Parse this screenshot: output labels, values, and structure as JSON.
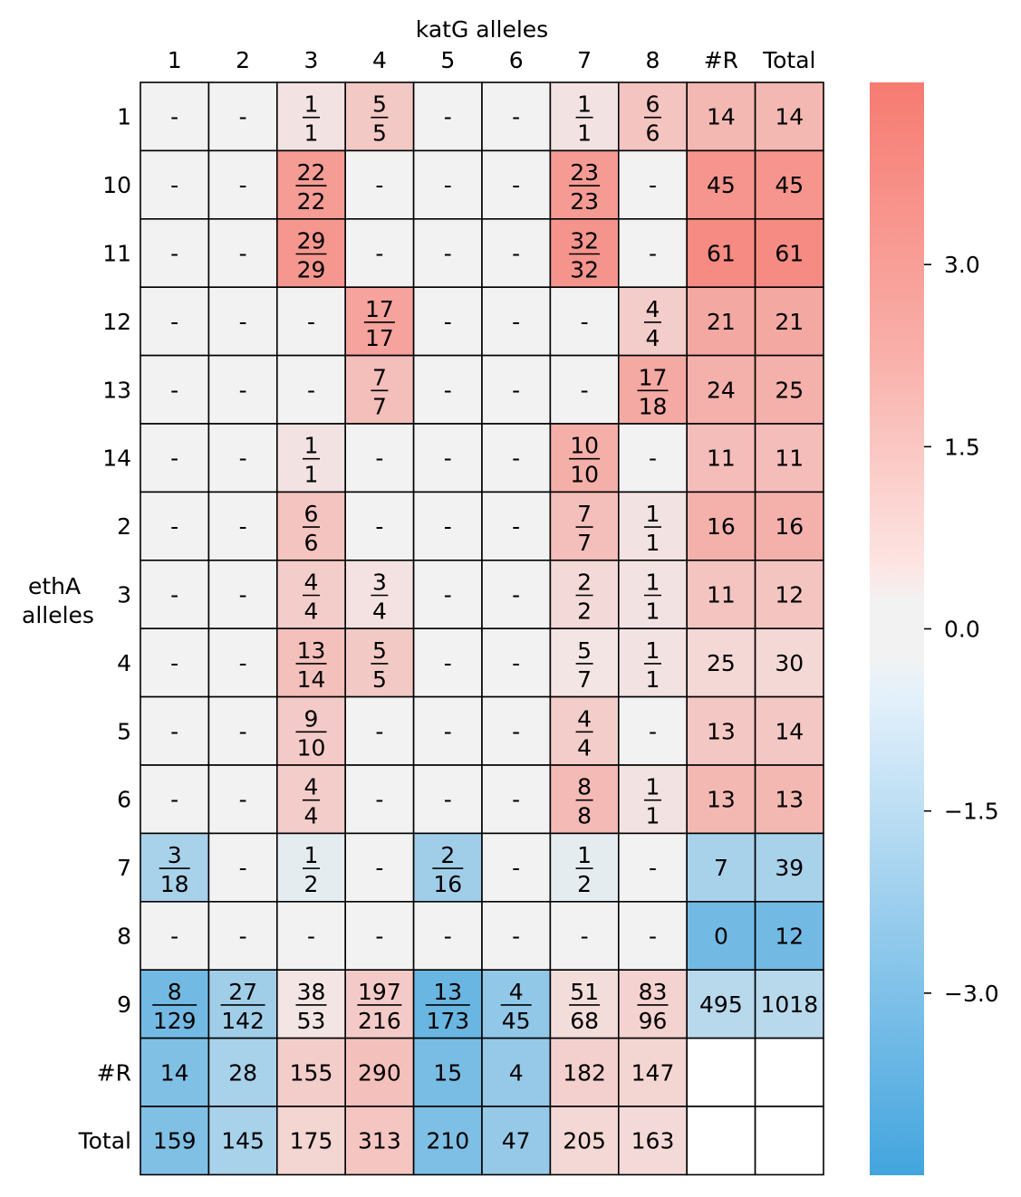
{
  "chart_data": {
    "type": "heatmap",
    "x_title": "katG alleles",
    "y_title_lines": [
      "ethA",
      "alleles"
    ],
    "columns": [
      "1",
      "2",
      "3",
      "4",
      "5",
      "6",
      "7",
      "8",
      "#R",
      "Total"
    ],
    "rows": [
      "1",
      "10",
      "11",
      "12",
      "13",
      "14",
      "2",
      "3",
      "4",
      "5",
      "6",
      "7",
      "8",
      "9",
      "#R",
      "Total"
    ],
    "cells": [
      [
        [
          "-",
          null,
          0
        ],
        [
          "-",
          null,
          0
        ],
        [
          [
            "1",
            "1"
          ],
          null,
          0.55
        ],
        [
          [
            "5",
            "5"
          ],
          null,
          1.55
        ],
        [
          "-",
          null,
          0
        ],
        [
          "-",
          null,
          0
        ],
        [
          [
            "1",
            "1"
          ],
          null,
          0.55
        ],
        [
          [
            "6",
            "6"
          ],
          null,
          1.75
        ],
        [
          "14",
          null,
          2.2
        ],
        [
          "14",
          null,
          2.2
        ]
      ],
      [
        [
          "-",
          null,
          0
        ],
        [
          "-",
          null,
          0
        ],
        [
          [
            "22",
            "22"
          ],
          null,
          3.25
        ],
        [
          "-",
          null,
          0
        ],
        [
          "-",
          null,
          0
        ],
        [
          "-",
          null,
          0
        ],
        [
          [
            "23",
            "23"
          ],
          null,
          3.3
        ],
        [
          "-",
          null,
          0
        ],
        [
          "45",
          null,
          3.5
        ],
        [
          "45",
          null,
          3.5
        ]
      ],
      [
        [
          "-",
          null,
          0
        ],
        [
          "-",
          null,
          0
        ],
        [
          [
            "29",
            "29"
          ],
          null,
          3.45
        ],
        [
          "-",
          null,
          0
        ],
        [
          "-",
          null,
          0
        ],
        [
          "-",
          null,
          0
        ],
        [
          [
            "32",
            "32"
          ],
          null,
          3.55
        ],
        [
          "-",
          null,
          0
        ],
        [
          "61",
          null,
          3.9
        ],
        [
          "61",
          null,
          3.9
        ]
      ],
      [
        [
          "-",
          null,
          0
        ],
        [
          "-",
          null,
          0
        ],
        [
          "-",
          null,
          0
        ],
        [
          [
            "17",
            "17"
          ],
          null,
          3.0
        ],
        [
          "-",
          null,
          0
        ],
        [
          "-",
          null,
          0
        ],
        [
          "-",
          null,
          0
        ],
        [
          [
            "4",
            "4"
          ],
          null,
          1.4
        ],
        [
          "21",
          null,
          2.8
        ],
        [
          "21",
          null,
          2.8
        ]
      ],
      [
        [
          "-",
          null,
          0
        ],
        [
          "-",
          null,
          0
        ],
        [
          "-",
          null,
          0
        ],
        [
          [
            "7",
            "7"
          ],
          null,
          1.95
        ],
        [
          "-",
          null,
          0
        ],
        [
          "-",
          null,
          0
        ],
        [
          "-",
          null,
          0
        ],
        [
          [
            "17",
            "18"
          ],
          null,
          2.75
        ],
        [
          "24",
          null,
          2.5
        ],
        [
          "25",
          null,
          2.5
        ]
      ],
      [
        [
          "-",
          null,
          0
        ],
        [
          "-",
          null,
          0
        ],
        [
          [
            "1",
            "1"
          ],
          null,
          0.55
        ],
        [
          "-",
          null,
          0
        ],
        [
          "-",
          null,
          0
        ],
        [
          "-",
          null,
          0
        ],
        [
          [
            "10",
            "10"
          ],
          null,
          2.55
        ],
        [
          "-",
          null,
          0
        ],
        [
          "11",
          null,
          2.0
        ],
        [
          "11",
          null,
          2.0
        ]
      ],
      [
        [
          "-",
          null,
          0
        ],
        [
          "-",
          null,
          0
        ],
        [
          [
            "6",
            "6"
          ],
          null,
          1.75
        ],
        [
          "-",
          null,
          0
        ],
        [
          "-",
          null,
          0
        ],
        [
          "-",
          null,
          0
        ],
        [
          [
            "7",
            "7"
          ],
          null,
          1.95
        ],
        [
          [
            "1",
            "1"
          ],
          null,
          0.55
        ],
        [
          "16",
          null,
          2.45
        ],
        [
          "16",
          null,
          2.45
        ]
      ],
      [
        [
          "-",
          null,
          0
        ],
        [
          "-",
          null,
          0
        ],
        [
          [
            "4",
            "4"
          ],
          null,
          1.4
        ],
        [
          [
            "3",
            "4"
          ],
          null,
          0.6
        ],
        [
          "-",
          null,
          0
        ],
        [
          "-",
          null,
          0
        ],
        [
          [
            "2",
            "2"
          ],
          null,
          0.95
        ],
        [
          [
            "1",
            "1"
          ],
          null,
          0.55
        ],
        [
          "11",
          null,
          1.75
        ],
        [
          "12",
          null,
          1.75
        ]
      ],
      [
        [
          "-",
          null,
          0
        ],
        [
          "-",
          null,
          0
        ],
        [
          [
            "13",
            "14"
          ],
          null,
          1.9
        ],
        [
          [
            "5",
            "5"
          ],
          null,
          1.55
        ],
        [
          "-",
          null,
          0
        ],
        [
          "-",
          null,
          0
        ],
        [
          [
            "5",
            "7"
          ],
          null,
          0.5
        ],
        [
          [
            "1",
            "1"
          ],
          null,
          0.55
        ],
        [
          "25",
          null,
          1.0
        ],
        [
          "30",
          null,
          1.0
        ]
      ],
      [
        [
          "-",
          null,
          0
        ],
        [
          "-",
          null,
          0
        ],
        [
          [
            "9",
            "10"
          ],
          null,
          1.5
        ],
        [
          "-",
          null,
          0
        ],
        [
          "-",
          null,
          0
        ],
        [
          "-",
          null,
          0
        ],
        [
          [
            "4",
            "4"
          ],
          null,
          1.4
        ],
        [
          "-",
          null,
          0
        ],
        [
          "13",
          null,
          1.6
        ],
        [
          "14",
          null,
          1.6
        ]
      ],
      [
        [
          "-",
          null,
          0
        ],
        [
          "-",
          null,
          0
        ],
        [
          [
            "4",
            "4"
          ],
          null,
          1.4
        ],
        [
          "-",
          null,
          0
        ],
        [
          "-",
          null,
          0
        ],
        [
          "-",
          null,
          0
        ],
        [
          [
            "8",
            "8"
          ],
          null,
          2.1
        ],
        [
          [
            "1",
            "1"
          ],
          null,
          0.55
        ],
        [
          "13",
          null,
          2.2
        ],
        [
          "13",
          null,
          2.2
        ]
      ],
      [
        [
          [
            "3",
            "18"
          ],
          null,
          -1.9
        ],
        [
          "-",
          null,
          0
        ],
        [
          [
            "1",
            "2"
          ],
          null,
          -0.35
        ],
        [
          "-",
          null,
          0
        ],
        [
          [
            "2",
            "16"
          ],
          null,
          -2.1
        ],
        [
          "-",
          null,
          0
        ],
        [
          [
            "1",
            "2"
          ],
          null,
          -0.35
        ],
        [
          "-",
          null,
          0
        ],
        [
          "7",
          null,
          -1.9
        ],
        [
          "39",
          null,
          -1.9
        ]
      ],
      [
        [
          "-",
          null,
          0
        ],
        [
          "-",
          null,
          0
        ],
        [
          "-",
          null,
          0
        ],
        [
          "-",
          null,
          0
        ],
        [
          "-",
          null,
          0
        ],
        [
          "-",
          null,
          0
        ],
        [
          "-",
          null,
          0
        ],
        [
          "-",
          null,
          0
        ],
        [
          "0",
          null,
          -3.3
        ],
        [
          "12",
          null,
          -3.3
        ]
      ],
      [
        [
          [
            "8",
            "129"
          ],
          null,
          -3.3
        ],
        [
          [
            "27",
            "142"
          ],
          null,
          -2.1
        ],
        [
          [
            "38",
            "53"
          ],
          null,
          0.5
        ],
        [
          [
            "197",
            "216"
          ],
          null,
          1.5
        ],
        [
          [
            "13",
            "173"
          ],
          null,
          -3.5
        ],
        [
          [
            "4",
            "45"
          ],
          null,
          -2.5
        ],
        [
          [
            "51",
            "68"
          ],
          null,
          0.8
        ],
        [
          [
            "83",
            "96"
          ],
          null,
          1.2
        ],
        [
          "495",
          null,
          -1.5
        ],
        [
          "1018",
          null,
          -1.5
        ]
      ],
      [
        [
          "14",
          null,
          -2.9
        ],
        [
          "28",
          null,
          -1.9
        ],
        [
          "155",
          null,
          1.4
        ],
        [
          "290",
          null,
          1.9
        ],
        [
          "15",
          null,
          -3.1
        ],
        [
          "4",
          null,
          -2.4
        ],
        [
          "182",
          null,
          1.3
        ],
        [
          "147",
          null,
          1.1
        ],
        [
          null,
          null,
          null
        ],
        [
          null,
          null,
          null
        ]
      ],
      [
        [
          "159",
          null,
          -2.9
        ],
        [
          "145",
          null,
          -1.9
        ],
        [
          "175",
          null,
          1.1
        ],
        [
          "313",
          null,
          1.7
        ],
        [
          "210",
          null,
          -3.0
        ],
        [
          "47",
          null,
          -2.4
        ],
        [
          "205",
          null,
          1.0
        ],
        [
          "163",
          null,
          0.9
        ],
        [
          null,
          null,
          null
        ],
        [
          null,
          null,
          null
        ]
      ]
    ],
    "colorbar": {
      "vmin": -4.5,
      "vmax": 4.5,
      "ticks": [
        "3.0",
        "1.5",
        "0.0",
        "−1.5",
        "−3.0"
      ],
      "tick_values": [
        3.0,
        1.5,
        0.0,
        -1.5,
        -3.0
      ]
    },
    "colors": {
      "neg": "#43a5de",
      "neutral": "#f2f2f2",
      "pos": "#f67b71",
      "blank": "#ffffff",
      "grid": "#000000"
    }
  }
}
